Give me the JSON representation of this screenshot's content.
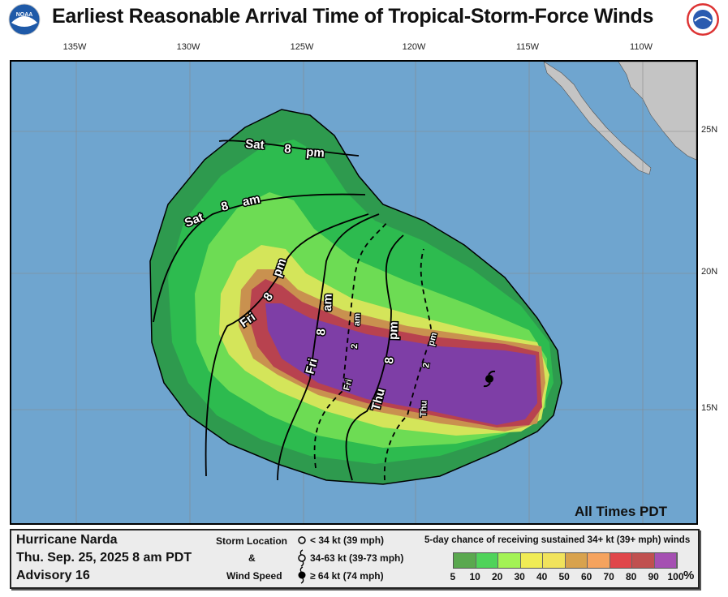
{
  "header": {
    "title": "Earliest Reasonable Arrival Time of Tropical-Storm-Force Winds",
    "left_logo": "NOAA",
    "right_logo": "NATIONAL WEATHER SERVICE"
  },
  "map": {
    "longitude_labels": [
      "135W",
      "130W",
      "125W",
      "120W",
      "115W",
      "110W"
    ],
    "latitude_labels": [
      "25N",
      "20N",
      "15N"
    ],
    "time_labels": {
      "sat8pm": [
        "Sat",
        "8",
        "pm"
      ],
      "sat8am": [
        "Sat",
        "8",
        "am"
      ],
      "fri8pm": [
        "Fri",
        "8",
        "pm"
      ],
      "fri8am": [
        "Fri",
        "8",
        "am"
      ],
      "fri2am": [
        "Fri",
        "2",
        "am"
      ],
      "thu8pm": [
        "Thu",
        "8",
        "pm"
      ],
      "thu2pm": [
        "Thu",
        "2",
        "pm"
      ]
    },
    "timezone_note": "All Times PDT",
    "colors": {
      "ocean": "#6fa5cf",
      "land": "#c4c4c4"
    },
    "storm_icon": "hurricane-symbol"
  },
  "legend": {
    "storm_name": "Hurricane Narda",
    "datetime": "Thu. Sep. 25, 2025  8 am PDT",
    "advisory": "Advisory 16",
    "storm_location_label": "Storm Location",
    "amp": "&",
    "wind_speed_label": "Wind Speed",
    "symbols": [
      {
        "icon": "open-circle",
        "text": "< 34 kt (39 mph)"
      },
      {
        "icon": "tropical-storm-symbol",
        "text": "34-63 kt (39-73 mph)"
      },
      {
        "icon": "hurricane-symbol",
        "text": "≥ 64 kt (74 mph)"
      }
    ],
    "scale_title": "5-day chance of receiving sustained 34+ kt (39+ mph) winds",
    "scale_colors": [
      "#5aa84f",
      "#4fd35a",
      "#a3f255",
      "#f0ec55",
      "#f1e35c",
      "#d8a24d",
      "#f5a35e",
      "#e0464a",
      "#c0504f",
      "#a550b2"
    ],
    "scale_ticks": [
      "5",
      "10",
      "20",
      "30",
      "40",
      "50",
      "60",
      "70",
      "80",
      "90",
      "100"
    ],
    "scale_unit": "%"
  }
}
